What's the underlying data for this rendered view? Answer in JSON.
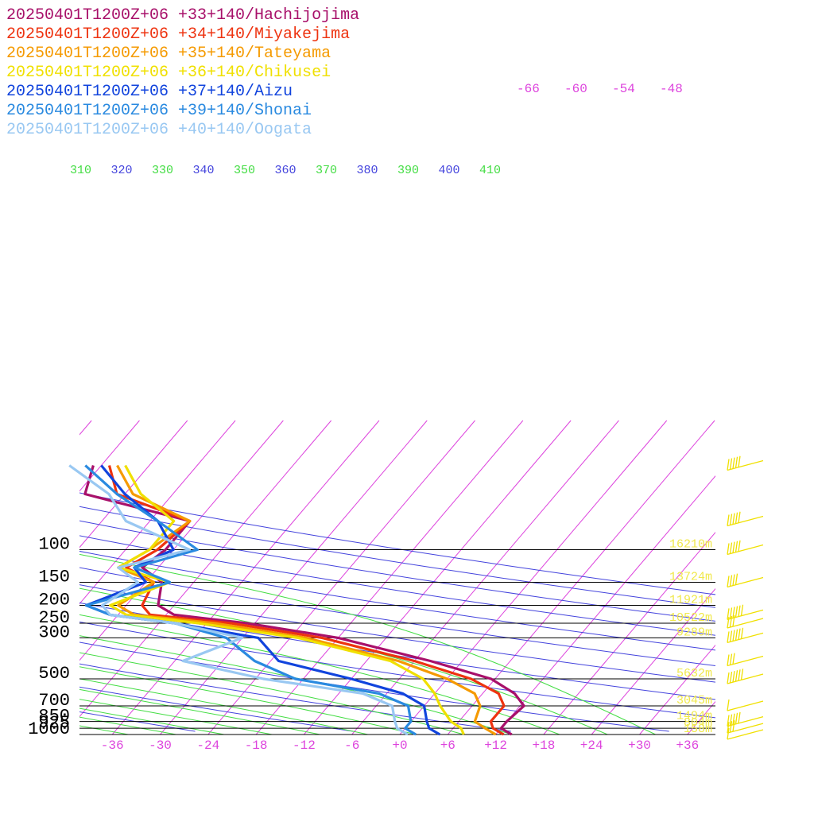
{
  "chart_data": {
    "type": "line",
    "chart_kind": "skew-T log-P sounding",
    "colors": {
      "isobar": "#000000",
      "isotherm": "#dd44dd",
      "dry_adiabat": "#4444dd",
      "moist_adiabat": "#44dd44",
      "height_label": "#f0e84a",
      "wind_barb": "#f0e000"
    },
    "legend_position": "top-left",
    "pressure_levels": [
      100,
      150,
      200,
      250,
      300,
      500,
      700,
      850,
      925,
      1000
    ],
    "pressure_tick_labels": [
      "100",
      "150",
      "200",
      "250",
      "300",
      "500",
      "700",
      "850",
      "925",
      "1000"
    ],
    "height_labels": [
      {
        "p": 100,
        "text": "16210m"
      },
      {
        "p": 150,
        "text": "13724m"
      },
      {
        "p": 200,
        "text": "11921m"
      },
      {
        "p": 250,
        "text": "10522m"
      },
      {
        "p": 300,
        "text": "9289m"
      },
      {
        "p": 500,
        "text": "5632m"
      },
      {
        "p": 700,
        "text": "3045m"
      },
      {
        "p": 850,
        "text": "1494m"
      },
      {
        "p": 925,
        "text": "804m"
      },
      {
        "p": 1000,
        "text": "158m"
      }
    ],
    "temperature_ticks": [
      -36,
      -30,
      -24,
      -18,
      -12,
      -6,
      0,
      6,
      12,
      18,
      24,
      30,
      36
    ],
    "temperature_tick_labels": [
      "-36",
      "-30",
      "-24",
      "-18",
      "-12",
      "-6",
      "+0",
      "+6",
      "+12",
      "+18",
      "+24",
      "+30",
      "+36"
    ],
    "upper_isotherm_labels": [
      {
        "t": -66,
        "text": "-66"
      },
      {
        "t": -60,
        "text": "-60"
      },
      {
        "t": -54,
        "text": "-54"
      },
      {
        "t": -48,
        "text": "-48"
      }
    ],
    "theta_labels": [
      {
        "text": "310",
        "kind": "moist"
      },
      {
        "text": "320",
        "kind": "dry"
      },
      {
        "text": "330",
        "kind": "moist"
      },
      {
        "text": "340",
        "kind": "dry"
      },
      {
        "text": "350",
        "kind": "moist"
      },
      {
        "text": "360",
        "kind": "dry"
      },
      {
        "text": "370",
        "kind": "moist"
      },
      {
        "text": "380",
        "kind": "dry"
      },
      {
        "text": "390",
        "kind": "moist"
      },
      {
        "text": "400",
        "kind": "dry"
      },
      {
        "text": "410",
        "kind": "moist"
      }
    ],
    "series": [
      {
        "name": "20250401T1200Z+06 +33+140/Hachijojima",
        "color": "#a8106a",
        "points": [
          [
            1000,
            14
          ],
          [
            925,
            12
          ],
          [
            850,
            12
          ],
          [
            700,
            12.5
          ],
          [
            600,
            10
          ],
          [
            500,
            5.5
          ],
          [
            400,
            -4
          ],
          [
            300,
            -18
          ],
          [
            250,
            -31
          ],
          [
            225,
            -41
          ],
          [
            200,
            -44
          ],
          [
            150,
            -46
          ],
          [
            125,
            -50
          ],
          [
            100,
            -49
          ],
          [
            70,
            -49
          ],
          [
            50,
            -65
          ],
          [
            35,
            -67
          ]
        ]
      },
      {
        "name": "20250401T1200Z+06 +34+140/Miyakejima",
        "color": "#ee3310",
        "points": [
          [
            1000,
            13
          ],
          [
            925,
            11
          ],
          [
            850,
            10
          ],
          [
            700,
            10
          ],
          [
            600,
            8
          ],
          [
            500,
            3
          ],
          [
            400,
            -6
          ],
          [
            300,
            -20
          ],
          [
            250,
            -33
          ],
          [
            225,
            -44
          ],
          [
            200,
            -46
          ],
          [
            150,
            -47
          ],
          [
            125,
            -52
          ],
          [
            100,
            -50
          ],
          [
            70,
            -49
          ],
          [
            50,
            -61
          ],
          [
            35,
            -65
          ]
        ]
      },
      {
        "name": "20250401T1200Z+06 +35+140/Tateyama",
        "color": "#f59a00",
        "points": [
          [
            1000,
            12
          ],
          [
            925,
            10
          ],
          [
            850,
            8
          ],
          [
            700,
            7
          ],
          [
            600,
            5
          ],
          [
            500,
            0
          ],
          [
            400,
            -8
          ],
          [
            300,
            -22
          ],
          [
            250,
            -35
          ],
          [
            225,
            -46
          ],
          [
            200,
            -49
          ],
          [
            150,
            -47
          ],
          [
            125,
            -53
          ],
          [
            100,
            -51
          ],
          [
            70,
            -49
          ],
          [
            50,
            -59
          ],
          [
            35,
            -64
          ]
        ]
      },
      {
        "name": "20250401T1200Z+06 +36+140/Chikusei",
        "color": "#f0e000",
        "points": [
          [
            1000,
            8
          ],
          [
            925,
            7
          ],
          [
            850,
            5
          ],
          [
            700,
            2
          ],
          [
            600,
            0
          ],
          [
            500,
            -3
          ],
          [
            400,
            -9
          ],
          [
            300,
            -23
          ],
          [
            250,
            -37
          ],
          [
            225,
            -47
          ],
          [
            200,
            -50
          ],
          [
            150,
            -45
          ],
          [
            125,
            -53
          ],
          [
            100,
            -51
          ],
          [
            70,
            -51
          ],
          [
            50,
            -58
          ],
          [
            35,
            -63
          ]
        ]
      },
      {
        "name": "20250401T1200Z+06 +37+140/Aizu",
        "color": "#1144dd",
        "points": [
          [
            1000,
            5
          ],
          [
            925,
            3
          ],
          [
            850,
            2
          ],
          [
            700,
            0
          ],
          [
            600,
            -4
          ],
          [
            500,
            -12
          ],
          [
            400,
            -23
          ],
          [
            300,
            -28
          ],
          [
            250,
            -40
          ],
          [
            225,
            -49
          ],
          [
            200,
            -53
          ],
          [
            150,
            -48
          ],
          [
            125,
            -51
          ],
          [
            100,
            -48
          ],
          [
            70,
            -53
          ],
          [
            50,
            -60
          ],
          [
            35,
            -66
          ]
        ]
      },
      {
        "name": "20250401T1200Z+06 +39+140/Shonai",
        "color": "#2a8ae0",
        "points": [
          [
            1000,
            2
          ],
          [
            925,
            0
          ],
          [
            850,
            0
          ],
          [
            700,
            -2
          ],
          [
            600,
            -7
          ],
          [
            500,
            -19
          ],
          [
            400,
            -26
          ],
          [
            300,
            -32
          ],
          [
            250,
            -40
          ],
          [
            225,
            -49
          ],
          [
            200,
            -53
          ],
          [
            150,
            -45
          ],
          [
            125,
            -51
          ],
          [
            100,
            -45
          ],
          [
            70,
            -53
          ],
          [
            50,
            -61
          ],
          [
            35,
            -68
          ]
        ]
      },
      {
        "name": "20250401T1200Z+06 +40+140/Oogata",
        "color": "#99c8f2",
        "points": [
          [
            1000,
            1
          ],
          [
            925,
            -1
          ],
          [
            850,
            -2
          ],
          [
            700,
            -4
          ],
          [
            600,
            -9
          ],
          [
            500,
            -23
          ],
          [
            400,
            -35
          ],
          [
            300,
            -30
          ],
          [
            250,
            -40
          ],
          [
            225,
            -49
          ],
          [
            200,
            -51
          ],
          [
            150,
            -49
          ],
          [
            125,
            -53
          ],
          [
            100,
            -46
          ],
          [
            70,
            -57
          ],
          [
            50,
            -62
          ],
          [
            35,
            -70
          ]
        ]
      }
    ],
    "wind_barbs": [
      {
        "p": 1000,
        "speed_kt": 10
      },
      {
        "p": 925,
        "speed_kt": 30
      },
      {
        "p": 850,
        "speed_kt": 45
      },
      {
        "p": 700,
        "speed_kt": 10
      },
      {
        "p": 500,
        "speed_kt": 60
      },
      {
        "p": 400,
        "speed_kt": 30
      },
      {
        "p": 300,
        "speed_kt": 60
      },
      {
        "p": 250,
        "speed_kt": 30
      },
      {
        "p": 225,
        "speed_kt": 60
      },
      {
        "p": 150,
        "speed_kt": 40
      },
      {
        "p": 100,
        "speed_kt": 50
      },
      {
        "p": 70,
        "speed_kt": 50
      },
      {
        "p": 35,
        "speed_kt": 50
      }
    ]
  }
}
